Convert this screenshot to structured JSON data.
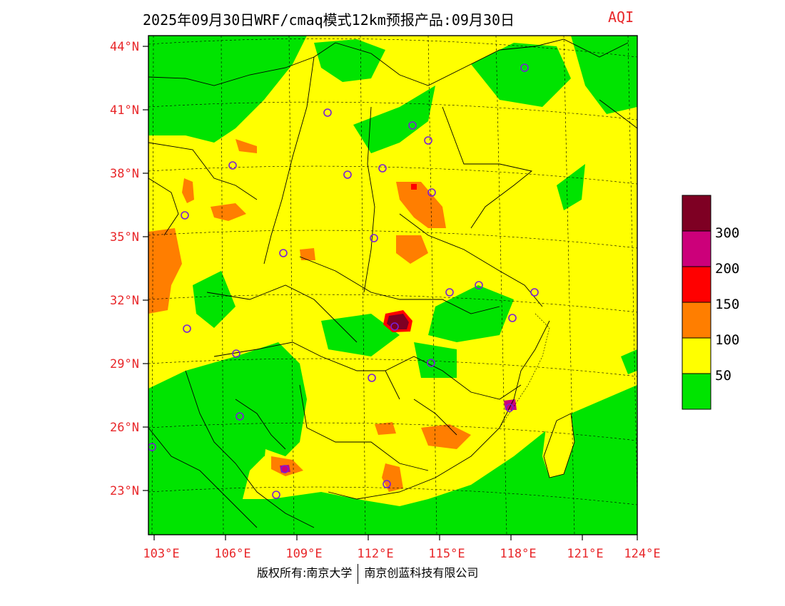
{
  "title": "2025年09月30日WRF/cmaq模式12km预报产品:09月30日",
  "aqi_label": "AQI",
  "footer": {
    "copyright": "版权所有:南京大学",
    "company": "南京创蓝科技有限公司"
  },
  "lat_ticks": [
    "44°N",
    "41°N",
    "38°N",
    "35°N",
    "32°N",
    "29°N",
    "26°N",
    "23°N"
  ],
  "lon_ticks": [
    "103°E",
    "106°E",
    "109°E",
    "112°E",
    "115°E",
    "118°E",
    "121°E",
    "124°E"
  ],
  "legend": {
    "labels": [
      "300",
      "200",
      "150",
      "100",
      "50"
    ],
    "colors": [
      "#00e400",
      "#ffff00",
      "#ff7e00",
      "#ff0000",
      "#cc007a",
      "#7e0023"
    ],
    "tick_color": "#e8272a"
  }
}
